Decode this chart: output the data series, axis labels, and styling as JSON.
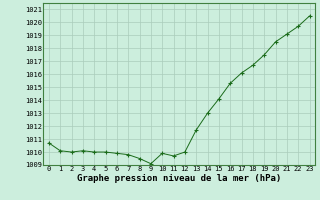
{
  "x": [
    0,
    1,
    2,
    3,
    4,
    5,
    6,
    7,
    8,
    9,
    10,
    11,
    12,
    13,
    14,
    15,
    16,
    17,
    18,
    19,
    20,
    21,
    22,
    23
  ],
  "y": [
    1010.7,
    1010.1,
    1010.0,
    1010.1,
    1010.0,
    1010.0,
    1009.9,
    1009.8,
    1009.5,
    1009.1,
    1009.9,
    1009.7,
    1010.0,
    1011.7,
    1013.0,
    1014.1,
    1015.3,
    1016.1,
    1016.7,
    1017.5,
    1018.5,
    1019.1,
    1019.7,
    1020.5
  ],
  "line_color": "#1a6b1a",
  "marker": "+",
  "marker_size": 3.5,
  "background_color": "#cceedd",
  "grid_color": "#aaccbb",
  "xlabel": "Graphe pression niveau de la mer (hPa)",
  "ylim": [
    1009.0,
    1021.5
  ],
  "yticks": [
    1009,
    1010,
    1011,
    1012,
    1013,
    1014,
    1015,
    1016,
    1017,
    1018,
    1019,
    1020,
    1021
  ],
  "xtick_fontsize": 5,
  "ytick_fontsize": 5,
  "xlabel_fontsize": 6.5
}
